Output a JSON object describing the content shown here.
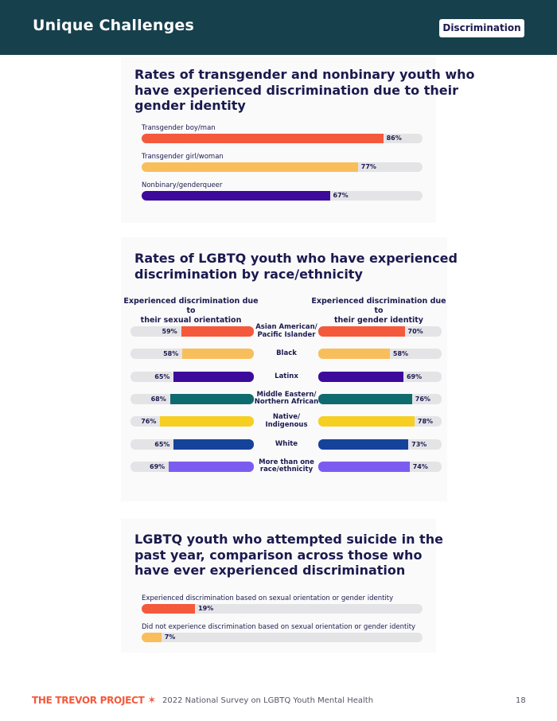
{
  "header": {
    "title": "Unique Challenges",
    "tag": "Discrimination"
  },
  "colors": {
    "header_bg": "#17404d",
    "orange": "#f4593c",
    "yellow": "#f9be5c",
    "purple": "#3c0b9b",
    "teal": "#0f6b6e",
    "gold": "#f6cf22",
    "blue": "#15439a",
    "violet": "#7b5cf0",
    "track": "#e4e4e7"
  },
  "chart_data": [
    {
      "type": "bar",
      "title": "Rates of transgender and nonbinary youth who\nhave experienced discrimination due to their\ngender identity",
      "categories": [
        "Transgender boy/man",
        "Transgender girl/woman",
        "Nonbinary/genderqueer"
      ],
      "values": [
        86,
        77,
        67
      ],
      "value_labels": [
        "86%",
        "77%",
        "67%"
      ],
      "colors": [
        "#f4593c",
        "#f9be5c",
        "#3c0b9b"
      ],
      "xlim": [
        0,
        100
      ]
    },
    {
      "type": "bar",
      "title": "Rates of LGBTQ youth who have experienced\ndiscrimination by race/ethnicity",
      "categories": [
        "Asian American/\nPacific Islander",
        "Black",
        "Latinx",
        "Middle Eastern/\nNorthern African",
        "Native/\nIndigenous",
        "White",
        "More than one\nrace/ethnicity"
      ],
      "series": [
        {
          "name": "Experienced discrimination due to\ntheir sexual orientation",
          "values": [
            59,
            58,
            65,
            68,
            76,
            65,
            69
          ],
          "value_labels": [
            "59%",
            "58%",
            "65%",
            "68%",
            "76%",
            "65%",
            "69%"
          ]
        },
        {
          "name": "Experienced discrimination due to\ntheir gender identity",
          "values": [
            70,
            58,
            69,
            76,
            78,
            73,
            74
          ],
          "value_labels": [
            "70%",
            "58%",
            "69%",
            "76%",
            "78%",
            "73%",
            "74%"
          ]
        }
      ],
      "colors": [
        "#f4593c",
        "#f9be5c",
        "#3c0b9b",
        "#0f6b6e",
        "#f6cf22",
        "#15439a",
        "#7b5cf0"
      ],
      "xlim": [
        0,
        100
      ]
    },
    {
      "type": "bar",
      "title": "LGBTQ youth who attempted suicide in the\npast year, comparison across those who\nhave ever experienced discrimination",
      "categories": [
        "Experienced discrimination based on sexual orientation or gender identity",
        "Did not experience discrimination based on sexual orientation or gender identity"
      ],
      "values": [
        19,
        7
      ],
      "value_labels": [
        "19%",
        "7%"
      ],
      "colors": [
        "#f4593c",
        "#f9be5c"
      ],
      "xlim": [
        0,
        100
      ]
    }
  ],
  "footer": {
    "logo": "THE TREVOR PROJECT",
    "text": "2022 National Survey on LGBTQ Youth Mental Health",
    "page_number": "18"
  }
}
